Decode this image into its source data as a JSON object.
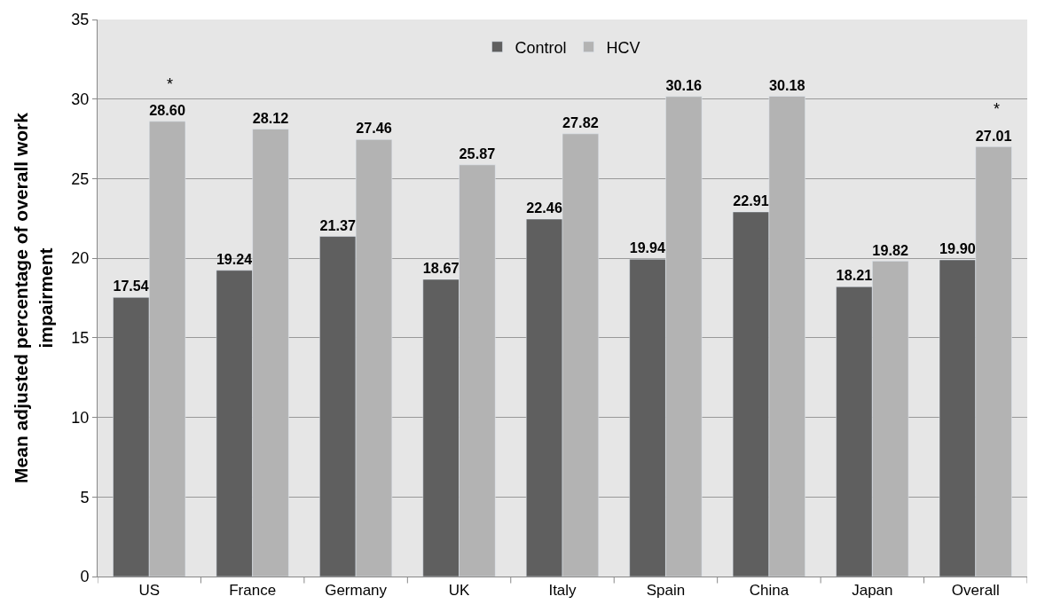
{
  "chart_data": {
    "type": "bar",
    "ylabel": "Mean adjusted percentage of overall work impairment",
    "categories": [
      "US",
      "France",
      "Germany",
      "UK",
      "Italy",
      "Spain",
      "China",
      "Japan",
      "Overall"
    ],
    "series": [
      {
        "name": "Control",
        "color": "#5f5f5f",
        "values": [
          17.54,
          19.24,
          21.37,
          18.67,
          22.46,
          19.94,
          22.91,
          18.21,
          19.9
        ],
        "value_labels": [
          "17.54",
          "19.24",
          "21.37",
          "18.67",
          "22.46",
          "19.94",
          "22.91",
          "18.21",
          "19.90"
        ]
      },
      {
        "name": "HCV",
        "color": "#b3b3b3",
        "values": [
          28.6,
          28.12,
          27.46,
          25.87,
          27.82,
          30.16,
          30.18,
          19.82,
          27.01
        ],
        "value_labels": [
          "28.60",
          "28.12",
          "27.46",
          "25.87",
          "27.82",
          "30.16",
          "30.18",
          "19.82",
          "27.01"
        ]
      }
    ],
    "annotations": [
      {
        "text": "*",
        "x": "US",
        "y": 28.6
      },
      {
        "text": "*",
        "x": "Overall",
        "y": 27.01
      }
    ],
    "ylim": [
      0,
      35
    ],
    "yticks": [
      0,
      5,
      10,
      15,
      20,
      25,
      30,
      35
    ],
    "grid": "y",
    "legend": "top"
  }
}
